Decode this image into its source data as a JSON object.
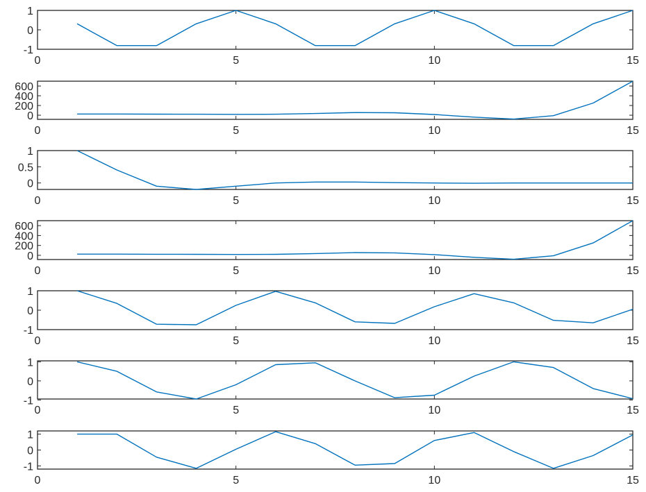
{
  "chart_data": [
    {
      "type": "line",
      "x": [
        1,
        2,
        3,
        4,
        5,
        6,
        7,
        8,
        9,
        10,
        11,
        12,
        13,
        14,
        15
      ],
      "series": [
        {
          "values": [
            0.31,
            -0.81,
            -0.81,
            0.31,
            1.0,
            0.31,
            -0.81,
            -0.81,
            0.31,
            1.0,
            0.31,
            -0.81,
            -0.81,
            0.31,
            1.0
          ]
        }
      ],
      "xlim": [
        0,
        15
      ],
      "ylim": [
        -1,
        1
      ],
      "xticks": [
        0,
        5,
        10,
        15
      ],
      "yticks": [
        -1,
        0,
        1
      ],
      "xtick_labels": [
        "0",
        "5",
        "10",
        "15"
      ],
      "ytick_labels": [
        "-1",
        "0",
        "1"
      ],
      "color": "#0072bd"
    },
    {
      "type": "line",
      "x": [
        1,
        2,
        3,
        4,
        5,
        6,
        7,
        8,
        9,
        10,
        11,
        12,
        13,
        14,
        15
      ],
      "series": [
        {
          "values": [
            25,
            25,
            22,
            20,
            18,
            20,
            35,
            55,
            50,
            15,
            -40,
            -80,
            -10,
            250,
            700
          ]
        }
      ],
      "xlim": [
        0,
        15
      ],
      "ylim": [
        -85,
        700
      ],
      "xticks": [
        0,
        5,
        10,
        15
      ],
      "yticks": [
        0,
        200,
        400,
        600
      ],
      "xtick_labels": [
        "0",
        "5",
        "10",
        "15"
      ],
      "ytick_labels": [
        "0",
        "200",
        "400",
        "600"
      ],
      "color": "#0072bd"
    },
    {
      "type": "line",
      "x": [
        1,
        2,
        3,
        4,
        5,
        6,
        7,
        8,
        9,
        10,
        11,
        12,
        13,
        14,
        15
      ],
      "series": [
        {
          "values": [
            1.0,
            0.4,
            -0.1,
            -0.2,
            -0.1,
            0.0,
            0.03,
            0.03,
            0.01,
            0.0,
            -0.01,
            0.0,
            0.0,
            0.0,
            0.0
          ]
        }
      ],
      "xlim": [
        0,
        15
      ],
      "ylim": [
        -0.2,
        1
      ],
      "xticks": [
        0,
        5,
        10,
        15
      ],
      "yticks": [
        0,
        0.5,
        1
      ],
      "xtick_labels": [
        "0",
        "5",
        "10",
        "15"
      ],
      "ytick_labels": [
        "0",
        "0.5",
        "1"
      ],
      "color": "#0072bd"
    },
    {
      "type": "line",
      "x": [
        1,
        2,
        3,
        4,
        5,
        6,
        7,
        8,
        9,
        10,
        11,
        12,
        13,
        14,
        15
      ],
      "series": [
        {
          "values": [
            25,
            25,
            22,
            20,
            18,
            20,
            35,
            55,
            50,
            15,
            -40,
            -80,
            -10,
            250,
            700
          ]
        }
      ],
      "xlim": [
        0,
        15
      ],
      "ylim": [
        -85,
        700
      ],
      "xticks": [
        0,
        5,
        10,
        15
      ],
      "yticks": [
        0,
        200,
        400,
        600
      ],
      "xtick_labels": [
        "0",
        "5",
        "10",
        "15"
      ],
      "ytick_labels": [
        "0",
        "200",
        "400",
        "600"
      ],
      "color": "#0072bd"
    },
    {
      "type": "line",
      "x": [
        1,
        2,
        3,
        4,
        5,
        6,
        7,
        8,
        9,
        10,
        11,
        12,
        13,
        14,
        15
      ],
      "series": [
        {
          "values": [
            1.0,
            0.35,
            -0.72,
            -0.75,
            0.25,
            0.97,
            0.38,
            -0.6,
            -0.68,
            0.18,
            0.85,
            0.38,
            -0.52,
            -0.65,
            0.05
          ]
        }
      ],
      "xlim": [
        0,
        15
      ],
      "ylim": [
        -1,
        1
      ],
      "xticks": [
        0,
        5,
        10,
        15
      ],
      "yticks": [
        -1,
        0,
        1
      ],
      "xtick_labels": [
        "0",
        "5",
        "10",
        "15"
      ],
      "ytick_labels": [
        "-1",
        "0",
        "1"
      ],
      "color": "#0072bd"
    },
    {
      "type": "line",
      "x": [
        1,
        2,
        3,
        4,
        5,
        6,
        7,
        8,
        9,
        10,
        11,
        12,
        13,
        14,
        15
      ],
      "series": [
        {
          "values": [
            1.0,
            0.5,
            -0.58,
            -0.95,
            -0.2,
            0.85,
            0.95,
            0.0,
            -0.88,
            -0.75,
            0.25,
            1.0,
            0.7,
            -0.4,
            -0.93
          ]
        }
      ],
      "xlim": [
        0,
        15
      ],
      "ylim": [
        -0.95,
        1.05
      ],
      "xticks": [
        0,
        5,
        10,
        15
      ],
      "yticks": [
        -1,
        0,
        1
      ],
      "xtick_labels": [
        "0",
        "5",
        "10",
        "15"
      ],
      "ytick_labels": [
        "-1",
        "0",
        "1"
      ],
      "color": "#0072bd"
    },
    {
      "type": "line",
      "x": [
        1,
        2,
        3,
        4,
        5,
        6,
        7,
        8,
        9,
        10,
        11,
        12,
        13,
        14,
        15
      ],
      "series": [
        {
          "values": [
            1.0,
            1.0,
            -0.45,
            -1.15,
            0.05,
            1.15,
            0.4,
            -0.95,
            -0.85,
            0.6,
            1.1,
            -0.1,
            -1.15,
            -0.35,
            0.95
          ]
        }
      ],
      "xlim": [
        0,
        15
      ],
      "ylim": [
        -1.2,
        1.2
      ],
      "xticks": [
        0,
        5,
        10,
        15
      ],
      "yticks": [
        -1,
        0,
        1
      ],
      "xtick_labels": [
        "0",
        "5",
        "10",
        "15"
      ],
      "ytick_labels": [
        "-1",
        "0",
        "1"
      ],
      "color": "#0072bd"
    }
  ]
}
